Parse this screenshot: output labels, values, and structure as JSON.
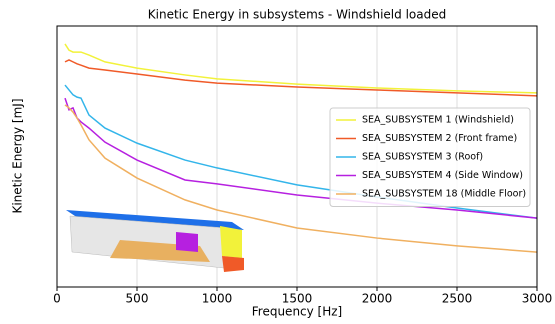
{
  "chart_data": {
    "type": "line",
    "title": "Kinetic Energy in subsystems - Windshield loaded",
    "x_label": "Frequency [Hz]",
    "y_label": "Kinetic Energy [mJ]",
    "x": [
      50,
      75,
      100,
      125,
      150,
      200,
      300,
      500,
      800,
      1000,
      1500,
      2000,
      2500,
      3000
    ],
    "xlim": [
      0,
      3000
    ],
    "xticks": [
      0,
      500,
      1000,
      1500,
      2000,
      2500,
      3000
    ],
    "ylim": [
      0,
      8
    ],
    "grid": true,
    "legend": "right",
    "series": [
      {
        "name": "SEA_SUBSYSTEM 1 (Windshield)",
        "color": "#f2f23a",
        "values": [
          7.45,
          7.26,
          7.2,
          7.2,
          7.2,
          7.11,
          6.9,
          6.71,
          6.5,
          6.38,
          6.22,
          6.1,
          6.01,
          5.95
        ]
      },
      {
        "name": "SEA_SUBSYSTEM 2 (Front frame)",
        "color": "#f05a28",
        "values": [
          6.9,
          6.96,
          6.9,
          6.84,
          6.8,
          6.71,
          6.65,
          6.53,
          6.34,
          6.25,
          6.13,
          6.04,
          5.95,
          5.86
        ]
      },
      {
        "name": "SEA_SUBSYSTEM 3 (Roof)",
        "color": "#33b5ea",
        "values": [
          6.19,
          6.04,
          5.89,
          5.82,
          5.79,
          5.27,
          4.87,
          4.41,
          3.89,
          3.65,
          3.13,
          2.76,
          2.42,
          2.11
        ]
      },
      {
        "name": "SEA_SUBSYSTEM 4 (Side Window)",
        "color": "#b620e0",
        "values": [
          5.79,
          5.43,
          5.49,
          5.18,
          5.06,
          4.87,
          4.44,
          3.89,
          3.28,
          3.16,
          2.82,
          2.57,
          2.36,
          2.11
        ]
      },
      {
        "name": "SEA_SUBSYSTEM 18 (Middle Floor)",
        "color": "#f0b060",
        "values": [
          5.58,
          5.49,
          5.36,
          5.18,
          4.97,
          4.51,
          3.95,
          3.34,
          2.67,
          2.36,
          1.81,
          1.5,
          1.26,
          1.07
        ]
      }
    ]
  }
}
